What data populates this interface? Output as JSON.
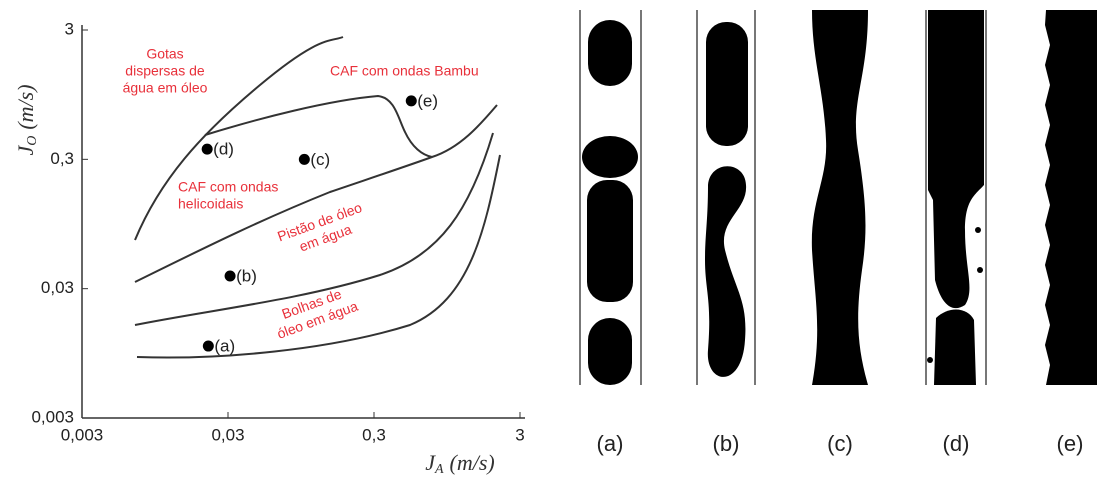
{
  "chart_data": {
    "type": "scatter",
    "log_scale": true,
    "color": "#000000",
    "annotation_color": "#e8303a",
    "x": [
      0.022,
      0.031,
      0.1,
      0.0216,
      0.54
    ],
    "values": [
      0.0108,
      0.0376,
      0.3,
      0.36,
      0.85
    ],
    "point_labels": [
      "(a)",
      "(b)",
      "(c)",
      "(d)",
      "(e)"
    ],
    "xlim": [
      0.003,
      3
    ],
    "ylim": [
      0.003,
      3
    ],
    "xticks": [
      {
        "value": 0.003,
        "label": "0,003"
      },
      {
        "value": 0.03,
        "label": "0,03"
      },
      {
        "value": 0.3,
        "label": "0,3"
      },
      3
    ],
    "yticks": [
      {
        "value": 0.003,
        "label": "0,003"
      },
      {
        "value": 0.03,
        "label": "0,03"
      },
      {
        "value": 0.3,
        "label": "0,3"
      },
      3
    ],
    "x_label": {
      "symbol": "J",
      "sub": "A",
      "unit": "(m/s)"
    },
    "y_label": {
      "symbol": "J",
      "sub": "O",
      "unit": "(m/s)"
    },
    "annotations": [
      {
        "lines": [
          "Gotas",
          "dispersas de",
          "água em óleo"
        ]
      },
      {
        "lines": [
          "CAF com ondas Bambu"
        ]
      },
      {
        "lines": [
          "CAF com ondas",
          "helicoidais"
        ]
      },
      {
        "lines": [
          "Pistão de óleo",
          "em água"
        ]
      },
      {
        "lines": [
          "Bolhas de",
          "óleo em água"
        ]
      }
    ]
  },
  "panels": {
    "captions": [
      "(a)",
      "(b)",
      "(c)",
      "(d)",
      "(e)"
    ]
  }
}
